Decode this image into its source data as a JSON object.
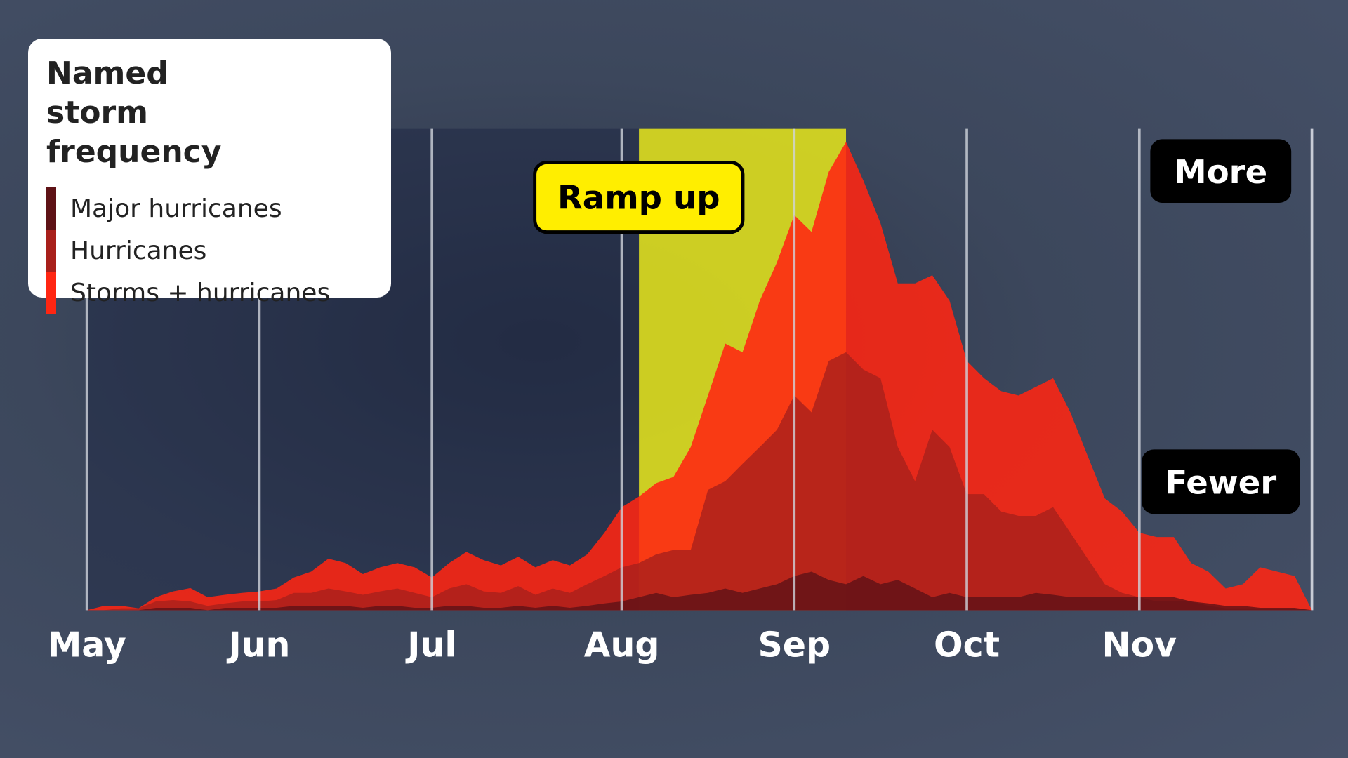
{
  "chart_data": {
    "type": "area",
    "title": "Named storm frequency",
    "categories": [
      "May",
      null,
      null,
      null,
      null,
      null,
      null,
      null,
      null,
      null,
      "Jun",
      null,
      null,
      null,
      null,
      null,
      null,
      null,
      null,
      null,
      "Jul",
      null,
      null,
      null,
      null,
      null,
      null,
      null,
      null,
      null,
      null,
      "Aug",
      null,
      null,
      null,
      null,
      null,
      null,
      null,
      null,
      null,
      "Sep",
      null,
      null,
      null,
      null,
      null,
      null,
      null,
      null,
      null,
      "Oct",
      null,
      null,
      null,
      null,
      null,
      null,
      null,
      null,
      null,
      "Nov",
      null,
      null,
      null,
      null,
      null,
      null,
      null,
      null,
      null,
      null
    ],
    "ylim": [
      0,
      100
    ],
    "series": [
      {
        "name": "Major hurricanes",
        "color": "#5e1216",
        "values": [
          0,
          0,
          0,
          0,
          0.5,
          0.5,
          0.5,
          0,
          0.5,
          0.5,
          0.5,
          0.5,
          0.9,
          0.9,
          0.9,
          0.9,
          0.5,
          0.9,
          0.9,
          0.5,
          0.5,
          0.9,
          0.9,
          0.5,
          0.5,
          0.9,
          0.5,
          0.9,
          0.5,
          0.9,
          1.4,
          1.8,
          2.7,
          3.6,
          2.7,
          3.2,
          3.6,
          4.5,
          3.6,
          4.5,
          5.4,
          7.1,
          8.0,
          6.3,
          5.4,
          7.1,
          5.4,
          6.3,
          4.5,
          2.7,
          3.6,
          2.7,
          2.7,
          2.7,
          2.7,
          3.6,
          3.2,
          2.7,
          2.7,
          2.7,
          2.7,
          2.7,
          2.7,
          2.7,
          1.8,
          1.4,
          0.9,
          0.9,
          0.5,
          0.5,
          0.5,
          0
        ]
      },
      {
        "name": "Hurricanes",
        "color": "#a8201b",
        "values": [
          0,
          0,
          0.4,
          0.4,
          1.8,
          2.1,
          1.8,
          0.9,
          1.4,
          1.8,
          1.8,
          2.1,
          3.6,
          3.6,
          4.5,
          3.9,
          3.2,
          3.9,
          4.5,
          3.6,
          2.7,
          4.5,
          5.4,
          3.9,
          3.6,
          5.0,
          3.2,
          4.5,
          3.6,
          5.4,
          7.1,
          8.9,
          9.8,
          11.6,
          12.5,
          12.5,
          25.0,
          26.8,
          30.4,
          33.9,
          37.5,
          44.6,
          41.1,
          51.8,
          53.6,
          50.0,
          48.2,
          33.9,
          26.8,
          37.5,
          33.9,
          24.1,
          24.1,
          20.5,
          19.6,
          19.6,
          21.4,
          16.1,
          10.7,
          5.4,
          3.6,
          2.7,
          1.8,
          1.8,
          1.8,
          0.9,
          0.4,
          0.4,
          0.4,
          0.4,
          0.4,
          0
        ]
      },
      {
        "name": "Storms + hurricanes",
        "color": "#ff2612",
        "values": [
          0,
          0.9,
          0.9,
          0.4,
          2.7,
          3.9,
          4.6,
          2.7,
          3.2,
          3.6,
          3.9,
          4.5,
          6.8,
          8.0,
          10.7,
          9.8,
          7.5,
          8.9,
          9.8,
          8.9,
          6.8,
          9.8,
          12.1,
          10.4,
          9.3,
          11.1,
          8.9,
          10.4,
          9.3,
          11.6,
          16.1,
          21.4,
          23.6,
          26.4,
          27.7,
          33.9,
          44.6,
          55.4,
          53.6,
          64.3,
          72.3,
          82.1,
          78.6,
          91.1,
          97.3,
          89.3,
          80.4,
          67.9,
          67.9,
          69.6,
          64.3,
          51.8,
          48.2,
          45.5,
          44.6,
          46.4,
          48.2,
          41.1,
          32.1,
          23.2,
          20.5,
          16.1,
          15.2,
          15.2,
          9.8,
          8.0,
          4.5,
          5.4,
          8.9,
          8.0,
          7.1,
          0
        ]
      }
    ],
    "highlight": {
      "label": "Ramp up",
      "start": 32,
      "end": 44,
      "color": "#dede1e"
    },
    "annotations": [
      {
        "text": "More"
      },
      {
        "text": "Fewer"
      }
    ],
    "grid": true
  }
}
